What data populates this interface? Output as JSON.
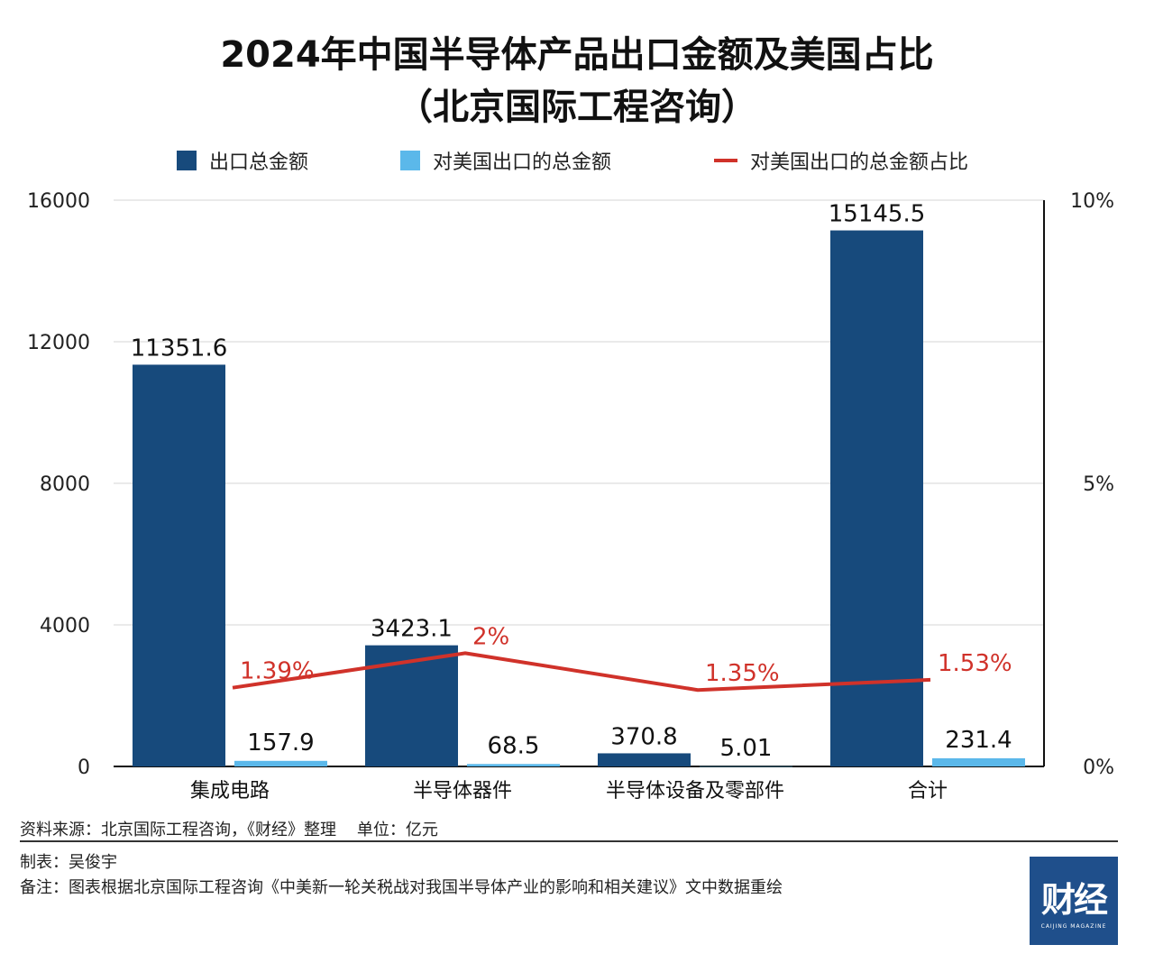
{
  "title_line1": "2024年中国半导体产品出口金额及美国占比",
  "title_line2": "（北京国际工程咨询）",
  "legend": [
    {
      "label": "出口总金额",
      "color": "#174a7c",
      "kind": "bar"
    },
    {
      "label": "对美国出口的总金额",
      "color": "#5bb8ea",
      "kind": "bar"
    },
    {
      "label": "对美国出口的总金额占比",
      "color": "#d0322a",
      "kind": "line"
    }
  ],
  "chart_data": {
    "type": "bar",
    "categories": [
      "集成电路",
      "半导体器件",
      "半导体设备及零部件",
      "合计"
    ],
    "series": [
      {
        "name": "出口总金额",
        "values": [
          11351.6,
          3423.1,
          370.8,
          15145.5
        ],
        "labels": [
          "11351.6",
          "3423.1",
          "370.8",
          "15145.5"
        ],
        "color": "#174a7c"
      },
      {
        "name": "对美国出口的总金额",
        "values": [
          157.9,
          68.5,
          5.01,
          231.4
        ],
        "labels": [
          "157.9",
          "68.5",
          "5.01",
          "231.4"
        ],
        "color": "#5bb8ea"
      }
    ],
    "line_series": {
      "name": "对美国出口的总金额占比",
      "values": [
        1.39,
        2,
        1.35,
        1.53
      ],
      "labels": [
        "1.39%",
        "2%",
        "1.35%",
        "1.53%"
      ],
      "color": "#d0322a"
    },
    "ylim": [
      0,
      16000
    ],
    "yticks": [
      0,
      4000,
      8000,
      12000,
      16000
    ],
    "ytick_labels": [
      "0",
      "4000",
      "8000",
      "12000",
      "16000"
    ],
    "y2lim": [
      0,
      10
    ],
    "y2ticks": [
      0,
      5,
      10
    ],
    "y2tick_labels": [
      "0%",
      "5%",
      "10%"
    ],
    "grid": true,
    "legend_position": "top"
  },
  "footer": {
    "source": "资料来源：北京国际工程咨询，《财经》整理",
    "unit": "单位：亿元",
    "maker": "制表：吴俊宇",
    "note": "备注：图表根据北京国际工程咨询《中美新一轮关税战对我国半导体产业的影响和相关建议》文中数据重绘"
  },
  "logo": {
    "text": "财经",
    "sub": "CAIJING MAGAZINE",
    "color": "#1f4f8b"
  }
}
